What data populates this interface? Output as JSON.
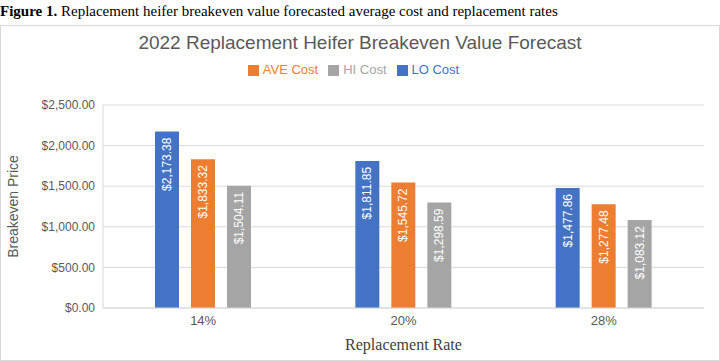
{
  "chart_data": {
    "type": "bar",
    "title": "2022 Replacement Heifer Breakeven Value Forecast",
    "annotations": [
      "Figure 1. Replacement heifer breakeven value forecasted average cost and replacement rates"
    ],
    "x_label": "Replacement Rate",
    "y_label": "Breakeven Price",
    "categories": [
      "14%",
      "20%",
      "28%"
    ],
    "series": [
      {
        "name": "LO Cost",
        "color": "#4472c4",
        "values": [
          2173.38,
          1811.85,
          1477.86
        ],
        "value_labels": [
          "$2,173.38",
          "$1,811.85",
          "$1,477.86"
        ]
      },
      {
        "name": "AVE Cost",
        "color": "#ed7d31",
        "values": [
          1833.32,
          1545.72,
          1277.48
        ],
        "value_labels": [
          "$1,833.32",
          "$1,545.72",
          "$1,277.48"
        ]
      },
      {
        "name": "HI Cost",
        "color": "#a5a5a5",
        "values": [
          1504.11,
          1298.59,
          1083.12
        ],
        "value_labels": [
          "$1,504.11",
          "$1,298.59",
          "$1,083.12"
        ]
      }
    ],
    "ylim": [
      0,
      2500
    ],
    "yticks": [
      {
        "value": 0,
        "label": "$0.00"
      },
      {
        "value": 500,
        "label": "$500.00"
      },
      {
        "value": 1000,
        "label": "$1,000.00"
      },
      {
        "value": 1500,
        "label": "$1,500.00"
      },
      {
        "value": 2000,
        "label": "$2,000.00"
      },
      {
        "value": 2500,
        "label": "$2,500.00"
      }
    ],
    "grid": true,
    "legend": "top",
    "data_labels": true
  }
}
